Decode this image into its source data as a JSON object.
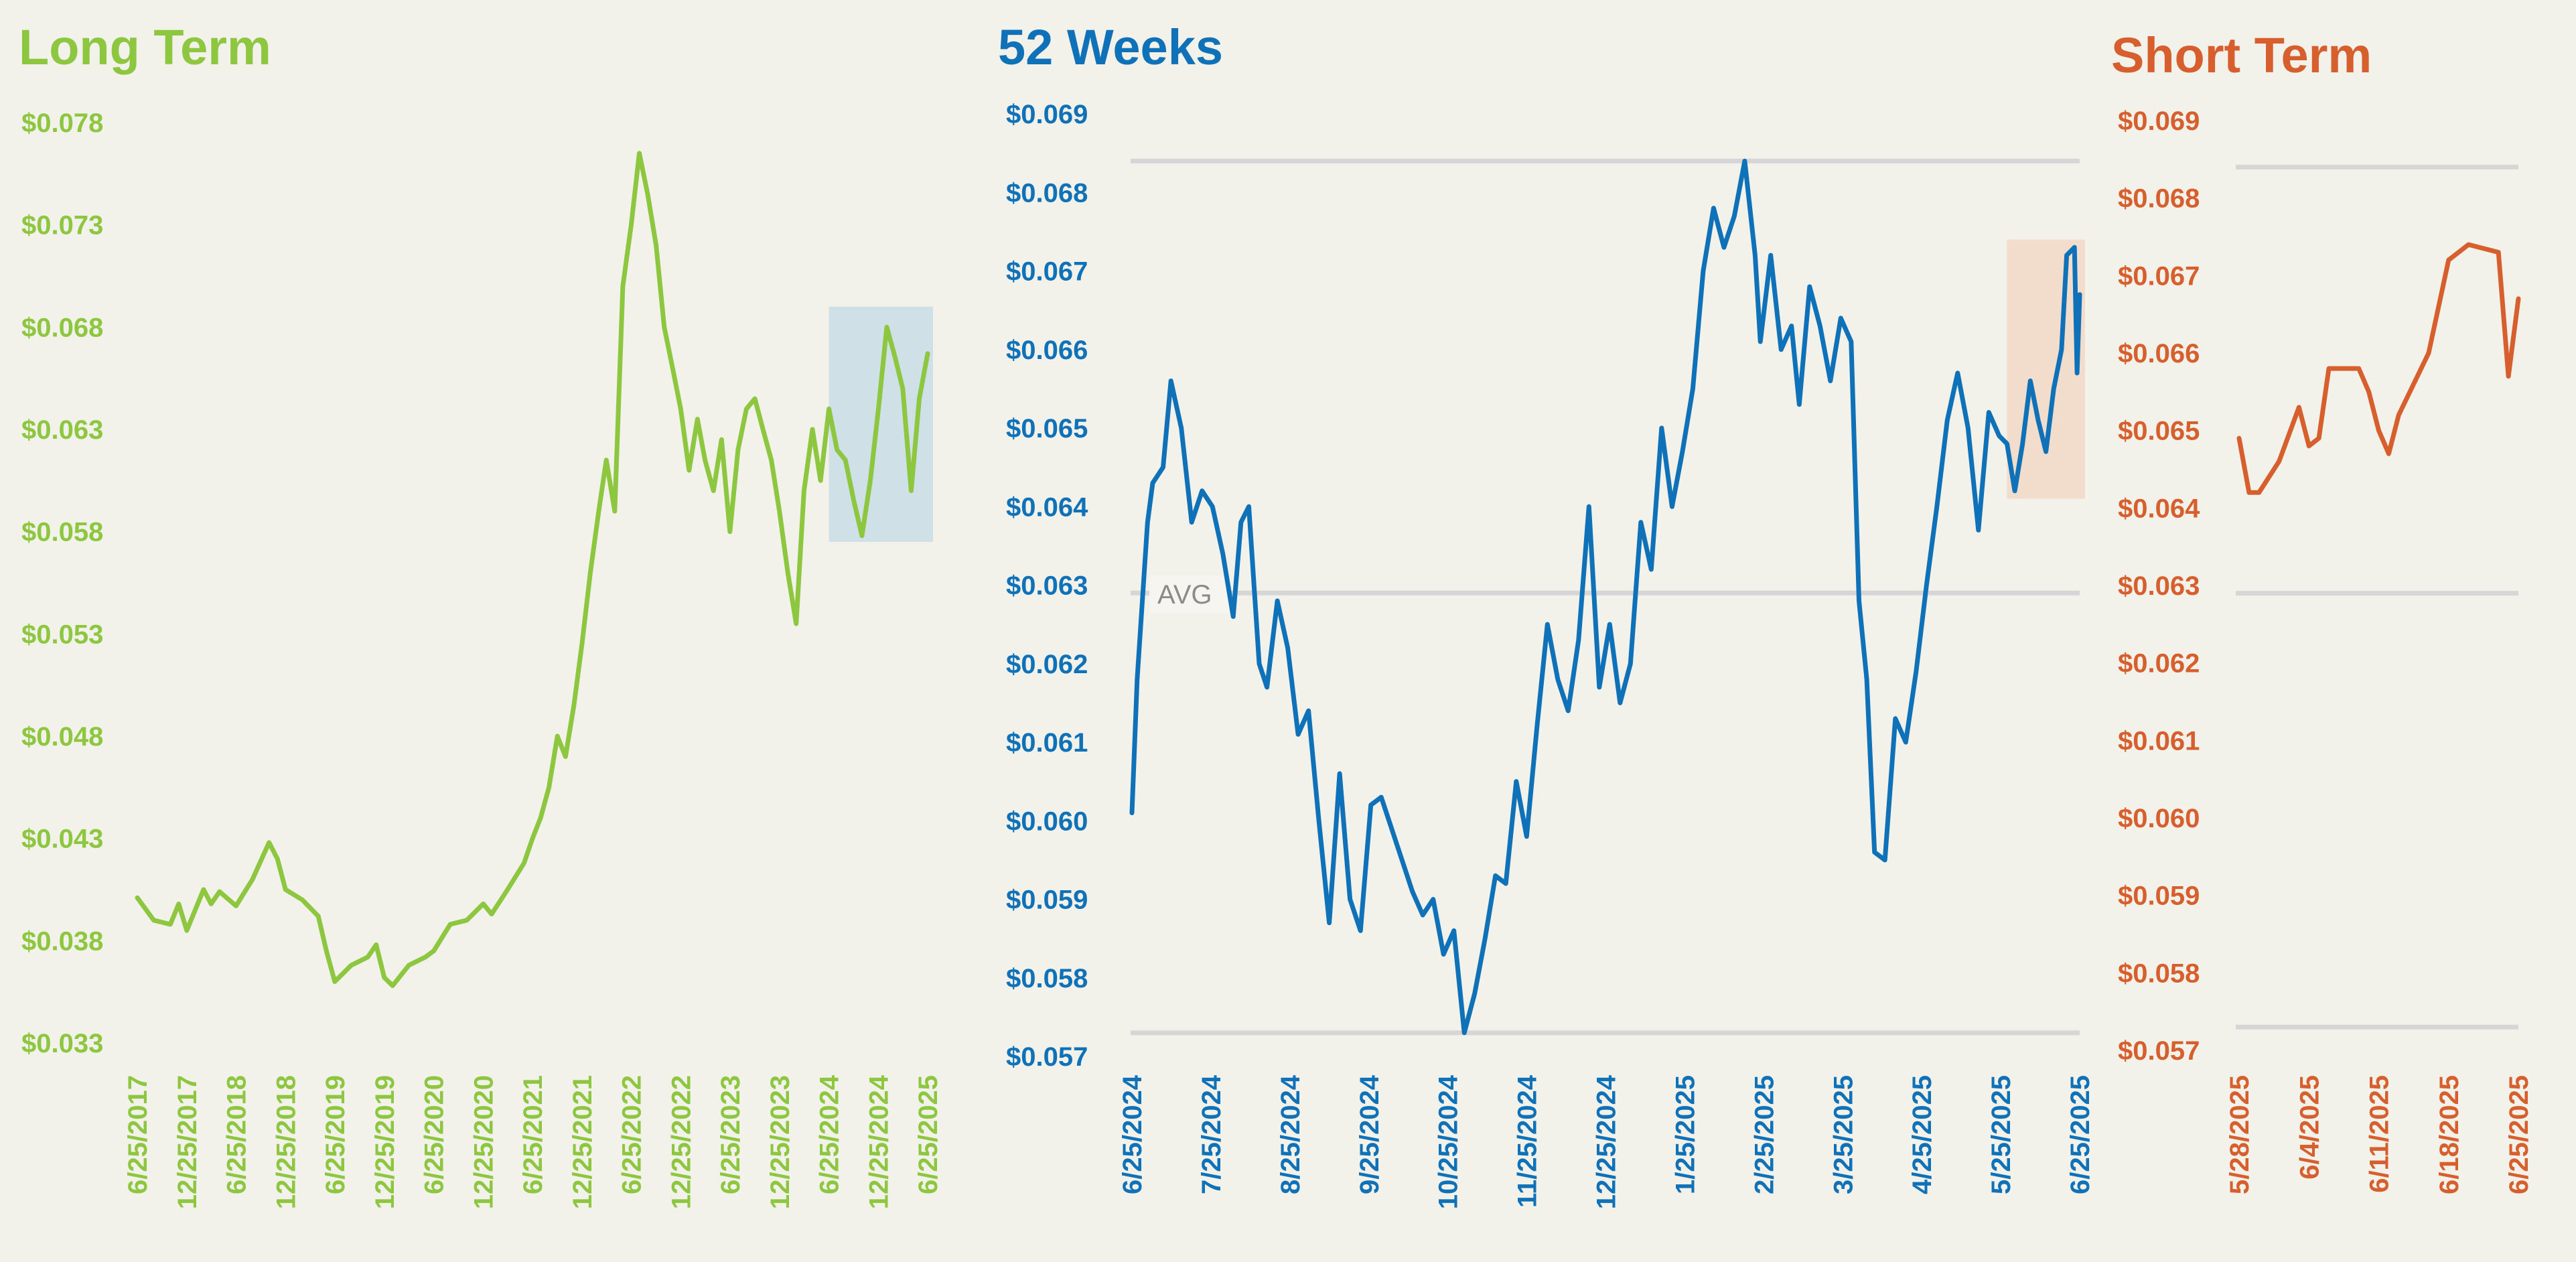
{
  "colors": {
    "background": "#f2f1ea",
    "long_term": "#8dc63f",
    "weeks_52": "#0f71b8",
    "short_term": "#d75f2d",
    "gridline": "#d6d6d6",
    "highlight_long": "#c9dde6",
    "highlight_52": "#f2d9c8"
  },
  "chart_data": [
    {
      "id": "long_term",
      "type": "line",
      "title": "Long Term",
      "x_ticks": [
        "6/25/2017",
        "12/25/2017",
        "6/25/2018",
        "12/25/2018",
        "6/25/2019",
        "12/25/2019",
        "6/25/2020",
        "12/25/2020",
        "6/25/2021",
        "12/25/2021",
        "6/25/2022",
        "12/25/2022",
        "6/25/2023",
        "12/25/2023",
        "6/25/2024",
        "12/25/2024",
        "6/25/2025"
      ],
      "y_ticks": [
        "$0.078",
        "$0.073",
        "$0.068",
        "$0.063",
        "$0.058",
        "$0.053",
        "$0.048",
        "$0.043",
        "$0.038",
        "$0.033"
      ],
      "ylim": [
        0.033,
        0.078
      ],
      "x_range": [
        "6/25/2017",
        "6/25/2025"
      ],
      "highlight": {
        "x": [
          "6/25/2024",
          "6/25/2025"
        ],
        "y": [
          0.0575,
          0.069
        ]
      },
      "series": [
        {
          "points": [
            [
              "6/25/2017",
              0.0401
            ],
            [
              "8/25/2017",
              0.039
            ],
            [
              "10/25/2017",
              0.0388
            ],
            [
              "11/25/2017",
              0.0398
            ],
            [
              "12/25/2017",
              0.0385
            ],
            [
              "1/25/2018",
              0.0395
            ],
            [
              "2/25/2018",
              0.0405
            ],
            [
              "3/25/2018",
              0.0398
            ],
            [
              "4/25/2018",
              0.0404
            ],
            [
              "6/25/2018",
              0.0397
            ],
            [
              "8/25/2018",
              0.041
            ],
            [
              "10/25/2018",
              0.0428
            ],
            [
              "11/25/2018",
              0.042
            ],
            [
              "12/25/2018",
              0.0405
            ],
            [
              "2/25/2019",
              0.04
            ],
            [
              "4/25/2019",
              0.0392
            ],
            [
              "5/25/2019",
              0.0375
            ],
            [
              "6/25/2019",
              0.036
            ],
            [
              "8/25/2019",
              0.0368
            ],
            [
              "10/25/2019",
              0.0372
            ],
            [
              "11/25/2019",
              0.0378
            ],
            [
              "12/25/2019",
              0.0362
            ],
            [
              "1/25/2020",
              0.0358
            ],
            [
              "3/25/2020",
              0.0368
            ],
            [
              "5/25/2020",
              0.0372
            ],
            [
              "6/25/2020",
              0.0375
            ],
            [
              "8/25/2020",
              0.0388
            ],
            [
              "10/25/2020",
              0.039
            ],
            [
              "12/25/2020",
              0.0398
            ],
            [
              "1/25/2021",
              0.0393
            ],
            [
              "3/25/2021",
              0.0405
            ],
            [
              "5/25/2021",
              0.0418
            ],
            [
              "6/25/2021",
              0.043
            ],
            [
              "7/25/2021",
              0.044
            ],
            [
              "8/25/2021",
              0.0455
            ],
            [
              "9/25/2021",
              0.048
            ],
            [
              "10/25/2021",
              0.047
            ],
            [
              "11/25/2021",
              0.0495
            ],
            [
              "12/25/2021",
              0.0525
            ],
            [
              "1/25/2022",
              0.056
            ],
            [
              "2/25/2022",
              0.059
            ],
            [
              "3/25/2022",
              0.0615
            ],
            [
              "4/25/2022",
              0.059
            ],
            [
              "5/25/2022",
              0.07
            ],
            [
              "6/25/2022",
              0.073
            ],
            [
              "7/25/2022",
              0.0765
            ],
            [
              "8/25/2022",
              0.0745
            ],
            [
              "9/25/2022",
              0.072
            ],
            [
              "10/25/2022",
              0.068
            ],
            [
              "11/25/2022",
              0.066
            ],
            [
              "12/25/2022",
              0.064
            ],
            [
              "1/25/2023",
              0.061
            ],
            [
              "2/25/2023",
              0.0635
            ],
            [
              "3/25/2023",
              0.0615
            ],
            [
              "4/25/2023",
              0.06
            ],
            [
              "5/25/2023",
              0.0625
            ],
            [
              "6/25/2023",
              0.058
            ],
            [
              "7/25/2023",
              0.062
            ],
            [
              "8/25/2023",
              0.064
            ],
            [
              "9/25/2023",
              0.0645
            ],
            [
              "10/25/2023",
              0.063
            ],
            [
              "11/25/2023",
              0.0615
            ],
            [
              "12/25/2023",
              0.059
            ],
            [
              "1/25/2024",
              0.056
            ],
            [
              "2/25/2024",
              0.0535
            ],
            [
              "3/25/2024",
              0.06
            ],
            [
              "4/25/2024",
              0.063
            ],
            [
              "5/25/2024",
              0.0605
            ],
            [
              "6/25/2024",
              0.064
            ],
            [
              "7/25/2024",
              0.062
            ],
            [
              "8/25/2024",
              0.0615
            ],
            [
              "9/25/2024",
              0.0595
            ],
            [
              "10/25/2024",
              0.0578
            ],
            [
              "11/25/2024",
              0.0605
            ],
            [
              "12/25/2024",
              0.064
            ],
            [
              "1/25/2025",
              0.068
            ],
            [
              "2/25/2025",
              0.0665
            ],
            [
              "3/25/2025",
              0.065
            ],
            [
              "4/25/2025",
              0.06
            ],
            [
              "5/25/2025",
              0.0645
            ],
            [
              "6/25/2025",
              0.0667
            ]
          ]
        }
      ]
    },
    {
      "id": "weeks_52",
      "type": "line",
      "title": "52 Weeks",
      "x_ticks": [
        "6/25/2024",
        "7/25/2024",
        "8/25/2024",
        "9/25/2024",
        "10/25/2024",
        "11/25/2024",
        "12/25/2024",
        "1/25/2025",
        "2/25/2025",
        "3/25/2025",
        "4/25/2025",
        "5/25/2025",
        "6/25/2025"
      ],
      "y_ticks": [
        "$0.069",
        "$0.068",
        "$0.067",
        "$0.066",
        "$0.065",
        "$0.064",
        "$0.063",
        "$0.062",
        "$0.061",
        "$0.060",
        "$0.059",
        "$0.058",
        "$0.057"
      ],
      "ylim": [
        0.057,
        0.069
      ],
      "x_range": [
        "6/25/2024",
        "6/25/2025"
      ],
      "reference_lines": [
        {
          "y": 0.0684
        },
        {
          "y": 0.0629,
          "label": "AVG"
        },
        {
          "y": 0.0573
        }
      ],
      "highlight": {
        "x": [
          "5/28/2025",
          "6/25/2025"
        ],
        "y": [
          0.0641,
          0.0674
        ]
      },
      "series": [
        {
          "points": [
            [
              "6/25/2024",
              0.0601
            ],
            [
              "6/27/2024",
              0.0618
            ],
            [
              "7/1/2024",
              0.0638
            ],
            [
              "7/3/2024",
              0.0643
            ],
            [
              "7/7/2024",
              0.0645
            ],
            [
              "7/10/2024",
              0.0656
            ],
            [
              "7/14/2024",
              0.065
            ],
            [
              "7/18/2024",
              0.0638
            ],
            [
              "7/22/2024",
              0.0642
            ],
            [
              "7/26/2024",
              0.064
            ],
            [
              "7/30/2024",
              0.0634
            ],
            [
              "8/3/2024",
              0.0626
            ],
            [
              "8/6/2024",
              0.0638
            ],
            [
              "8/9/2024",
              0.064
            ],
            [
              "8/13/2024",
              0.062
            ],
            [
              "8/16/2024",
              0.0617
            ],
            [
              "8/20/2024",
              0.0628
            ],
            [
              "8/24/2024",
              0.0622
            ],
            [
              "8/28/2024",
              0.0611
            ],
            [
              "9/1/2024",
              0.0614
            ],
            [
              "9/5/2024",
              0.06
            ],
            [
              "9/9/2024",
              0.0587
            ],
            [
              "9/13/2024",
              0.0606
            ],
            [
              "9/17/2024",
              0.059
            ],
            [
              "9/21/2024",
              0.0586
            ],
            [
              "9/25/2024",
              0.0602
            ],
            [
              "9/29/2024",
              0.0603
            ],
            [
              "10/3/2024",
              0.0599
            ],
            [
              "10/7/2024",
              0.0595
            ],
            [
              "10/11/2024",
              0.0591
            ],
            [
              "10/15/2024",
              0.0588
            ],
            [
              "10/19/2024",
              0.059
            ],
            [
              "10/23/2024",
              0.0583
            ],
            [
              "10/27/2024",
              0.0586
            ],
            [
              "10/31/2024",
              0.0573
            ],
            [
              "11/4/2024",
              0.0578
            ],
            [
              "11/8/2024",
              0.0585
            ],
            [
              "11/12/2024",
              0.0593
            ],
            [
              "11/16/2024",
              0.0592
            ],
            [
              "11/20/2024",
              0.0605
            ],
            [
              "11/24/2024",
              0.0598
            ],
            [
              "11/28/2024",
              0.0612
            ],
            [
              "12/2/2024",
              0.0625
            ],
            [
              "12/6/2024",
              0.0618
            ],
            [
              "12/10/2024",
              0.0614
            ],
            [
              "12/14/2024",
              0.0623
            ],
            [
              "12/18/2024",
              0.064
            ],
            [
              "12/22/2024",
              0.0617
            ],
            [
              "12/26/2024",
              0.0625
            ],
            [
              "12/30/2024",
              0.0615
            ],
            [
              "1/3/2025",
              0.062
            ],
            [
              "1/7/2025",
              0.0638
            ],
            [
              "1/11/2025",
              0.0632
            ],
            [
              "1/15/2025",
              0.065
            ],
            [
              "1/19/2025",
              0.064
            ],
            [
              "1/23/2025",
              0.0647
            ],
            [
              "1/27/2025",
              0.0655
            ],
            [
              "1/31/2025",
              0.067
            ],
            [
              "2/4/2025",
              0.0678
            ],
            [
              "2/8/2025",
              0.0673
            ],
            [
              "2/12/2025",
              0.0677
            ],
            [
              "2/16/2025",
              0.0684
            ],
            [
              "2/20/2025",
              0.0672
            ],
            [
              "2/22/2025",
              0.0661
            ],
            [
              "2/26/2025",
              0.0672
            ],
            [
              "3/2/2025",
              0.066
            ],
            [
              "3/6/2025",
              0.0663
            ],
            [
              "3/9/2025",
              0.0653
            ],
            [
              "3/13/2025",
              0.0668
            ],
            [
              "3/17/2025",
              0.0663
            ],
            [
              "3/21/2025",
              0.0656
            ],
            [
              "3/25/2025",
              0.0664
            ],
            [
              "3/29/2025",
              0.0661
            ],
            [
              "4/1/2025",
              0.0628
            ],
            [
              "4/4/2025",
              0.0618
            ],
            [
              "4/7/2025",
              0.0596
            ],
            [
              "4/11/2025",
              0.0595
            ],
            [
              "4/15/2025",
              0.0613
            ],
            [
              "4/19/2025",
              0.061
            ],
            [
              "4/23/2025",
              0.0619
            ],
            [
              "4/27/2025",
              0.063
            ],
            [
              "5/1/2025",
              0.064
            ],
            [
              "5/5/2025",
              0.0651
            ],
            [
              "5/9/2025",
              0.0657
            ],
            [
              "5/13/2025",
              0.065
            ],
            [
              "5/17/2025",
              0.0637
            ],
            [
              "5/21/2025",
              0.0652
            ],
            [
              "5/25/2025",
              0.0649
            ],
            [
              "5/28/2025",
              0.0648
            ],
            [
              "5/31/2025",
              0.0642
            ],
            [
              "6/3/2025",
              0.0648
            ],
            [
              "6/6/2025",
              0.0656
            ],
            [
              "6/9/2025",
              0.0651
            ],
            [
              "6/12/2025",
              0.0647
            ],
            [
              "6/15/2025",
              0.0655
            ],
            [
              "6/18/2025",
              0.066
            ],
            [
              "6/20/2025",
              0.0672
            ],
            [
              "6/23/2025",
              0.0673
            ],
            [
              "6/24/2025",
              0.0657
            ],
            [
              "6/25/2025",
              0.0667
            ]
          ]
        }
      ]
    },
    {
      "id": "short_term",
      "type": "line",
      "title": "Short Term",
      "x_ticks": [
        "5/28/2025",
        "6/4/2025",
        "6/11/2025",
        "6/18/2025",
        "6/25/2025"
      ],
      "y_ticks": [
        "$0.069",
        "$0.068",
        "$0.067",
        "$0.066",
        "$0.065",
        "$0.064",
        "$0.063",
        "$0.062",
        "$0.061",
        "$0.060",
        "$0.059",
        "$0.058",
        "$0.057"
      ],
      "ylim": [
        0.057,
        0.069
      ],
      "x_range": [
        "5/28/2025",
        "6/25/2025"
      ],
      "reference_lines": [
        {
          "y": 0.0684
        },
        {
          "y": 0.0629
        },
        {
          "y": 0.0573
        }
      ],
      "series": [
        {
          "points": [
            [
              "5/28/2025",
              0.0649
            ],
            [
              "5/29/2025",
              0.0642
            ],
            [
              "5/30/2025",
              0.0642
            ],
            [
              "6/1/2025",
              0.0646
            ],
            [
              "6/3/2025",
              0.0653
            ],
            [
              "6/4/2025",
              0.0648
            ],
            [
              "6/5/2025",
              0.0649
            ],
            [
              "6/6/2025",
              0.0658
            ],
            [
              "6/9/2025",
              0.0658
            ],
            [
              "6/10/2025",
              0.0655
            ],
            [
              "6/11/2025",
              0.065
            ],
            [
              "6/12/2025",
              0.0647
            ],
            [
              "6/13/2025",
              0.0652
            ],
            [
              "6/16/2025",
              0.066
            ],
            [
              "6/18/2025",
              0.0672
            ],
            [
              "6/20/2025",
              0.0674
            ],
            [
              "6/23/2025",
              0.0673
            ],
            [
              "6/24/2025",
              0.0657
            ],
            [
              "6/25/2025",
              0.0667
            ]
          ]
        }
      ]
    }
  ]
}
